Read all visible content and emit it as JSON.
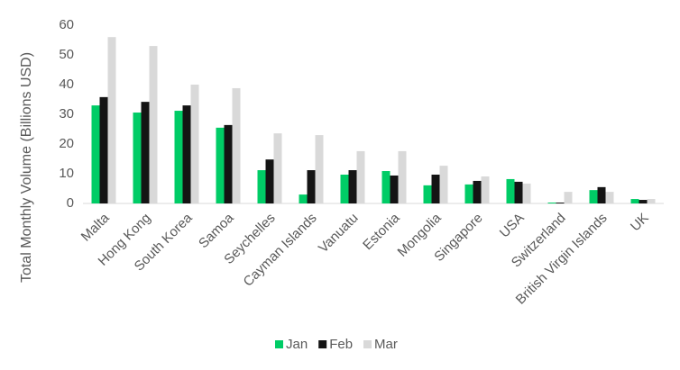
{
  "chart_data": {
    "type": "bar",
    "y_label": "Total Monthly Volume (Billions USD)",
    "categories": [
      "Malta",
      "Hong Kong",
      "South Korea",
      "Samoa",
      "Seychelles",
      "Cayman Islands",
      "Vanuatu",
      "Estonia",
      "Mongolia",
      "Singapore",
      "USA",
      "Switzerland",
      "British Virgin Islands",
      "UK"
    ],
    "series": [
      {
        "name": "Jan",
        "color": "#00cc66",
        "values": [
          33,
          30.6,
          31.2,
          25.5,
          11.2,
          3,
          9.7,
          10.9,
          6.1,
          6.4,
          8.2,
          0.3,
          4.5,
          1.5
        ]
      },
      {
        "name": "Feb",
        "color": "#141414",
        "values": [
          35.8,
          34.2,
          33,
          26.4,
          14.8,
          11.2,
          11.2,
          9.4,
          9.7,
          7.6,
          7.3,
          0.3,
          5.5,
          1.2
        ]
      },
      {
        "name": "Mar",
        "color": "#d9d9d9",
        "values": [
          56,
          53,
          40,
          38.8,
          23.6,
          23,
          17.6,
          17.6,
          12.7,
          9.1,
          6.7,
          3.9,
          3.9,
          1.5
        ]
      }
    ],
    "ylim": [
      0,
      60
    ],
    "yticks": [
      0,
      10,
      20,
      30,
      40,
      50,
      60
    ],
    "grid": false,
    "legend": "bottom"
  }
}
